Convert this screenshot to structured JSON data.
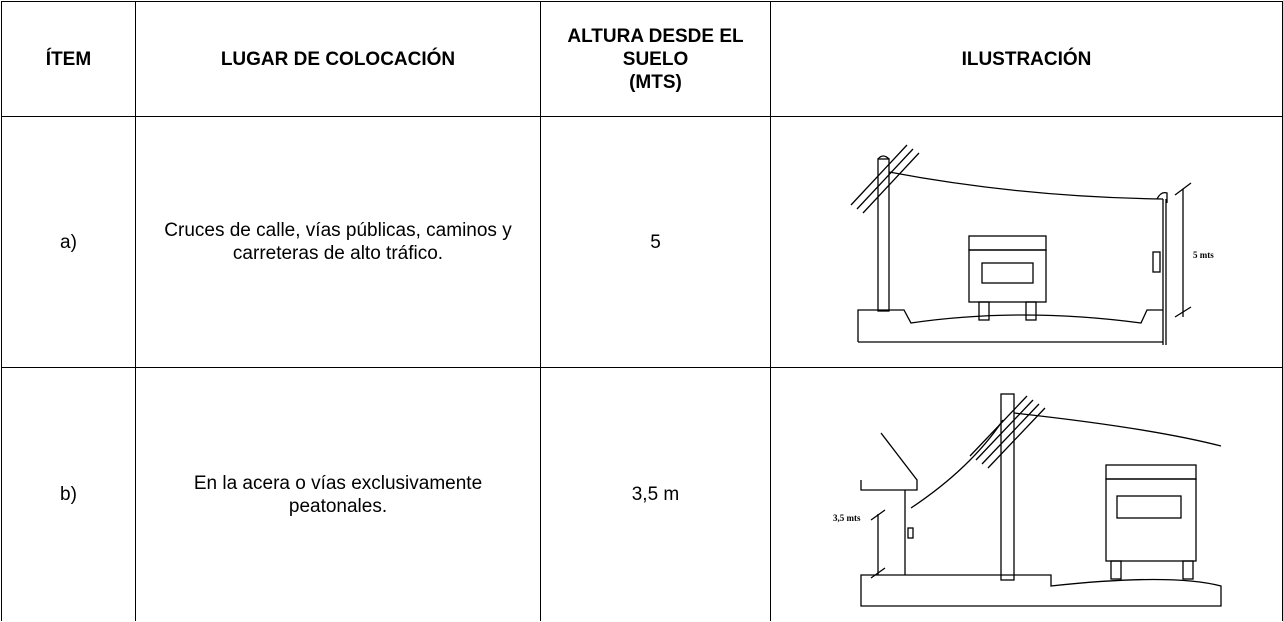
{
  "table": {
    "header": [
      "ÍTEM",
      "LUGAR DE COLOCACIÓN",
      "ALTURA DESDE EL\nSUELO\n(MTS)",
      "ILUSTRACIÓN"
    ],
    "rows": [
      {
        "item": "a)",
        "place": "Cruces de calle, vías públicas, caminos y carreteras de alto tráfico.",
        "height": "5",
        "illustration_label": "5 mts"
      },
      {
        "item": "b)",
        "place": "En la acera o vías exclusivamente peatonales.",
        "height": "3,5 m",
        "illustration_label": "3,5 mts"
      }
    ]
  }
}
